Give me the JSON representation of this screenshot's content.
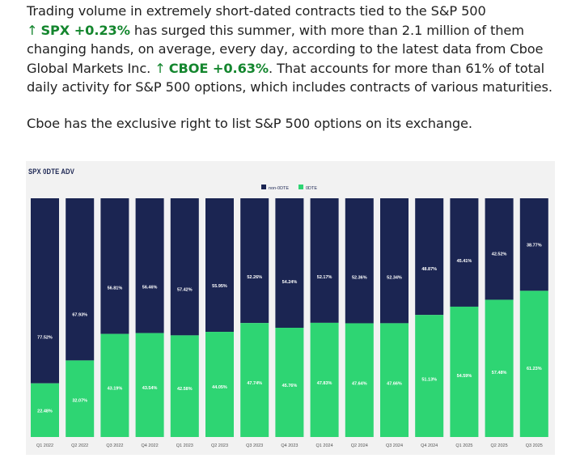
{
  "article": {
    "p1_a": "Trading volume in extremely short-dated contracts tied to the S&P 500",
    "spx": {
      "arrow": "↑",
      "ticker": "SPX",
      "change": "+0.23%"
    },
    "p1_b": "has surged this summer, with more than 2.1 million of them changing hands, on average, every day, according to the latest data from Cboe Global Markets Inc.",
    "cboe": {
      "arrow": "↑",
      "ticker": "CBOE",
      "change": "+0.63%"
    },
    "p1_c": ". That accounts for more than 61% of total daily activity for S&P 500 options, which includes contracts of various maturities.",
    "p2": "Cboe has the exclusive right to list S&P 500 options on its exchange."
  },
  "colors": {
    "positive": "#14862e",
    "navy": "#1b2552",
    "green": "#2ed573",
    "chart_bg": "#f2f2f2"
  },
  "chart_data": {
    "type": "bar",
    "stacked": true,
    "percent_scale": true,
    "title": "SPX 0DTE ADV",
    "categories": [
      "Q1 2022",
      "Q2 2022",
      "Q3 2022",
      "Q4 2022",
      "Q1 2023",
      "Q2 2023",
      "Q3 2023",
      "Q4 2023",
      "Q1 2024",
      "Q2 2024",
      "Q3 2024",
      "Q4 2024",
      "Q1 2025",
      "Q2 2025",
      "Q3 2025"
    ],
    "series": [
      {
        "name": "0DTE",
        "color": "#2ed573",
        "values": [
          22.48,
          32.07,
          43.19,
          43.54,
          42.58,
          44.05,
          47.74,
          45.76,
          47.83,
          47.64,
          47.66,
          51.13,
          54.59,
          57.48,
          61.23
        ],
        "labels": [
          "22.48%",
          "32.07%",
          "43.19%",
          "43.54%",
          "42.58%",
          "44.05%",
          "47.74%",
          "45.76%",
          "47.83%",
          "47.64%",
          "47.66%",
          "51.13%",
          "54.59%",
          "57.48%",
          "61.23%"
        ]
      },
      {
        "name": "non-0DTE",
        "color": "#1b2552",
        "values": [
          77.52,
          67.93,
          56.81,
          56.46,
          57.42,
          55.95,
          52.26,
          54.24,
          52.17,
          52.36,
          52.34,
          48.87,
          45.41,
          42.52,
          38.77
        ],
        "labels": [
          "77.52%",
          "67.93%",
          "56.81%",
          "56.46%",
          "57.42%",
          "55.95%",
          "52.26%",
          "54.24%",
          "52.17%",
          "52.36%",
          "52.34%",
          "48.87%",
          "45.41%",
          "42.52%",
          "38.77%"
        ]
      }
    ],
    "legend": {
      "position": "top-center",
      "order": [
        "non-0DTE",
        "0DTE"
      ]
    },
    "ylim": [
      0,
      100
    ],
    "grid": false
  }
}
